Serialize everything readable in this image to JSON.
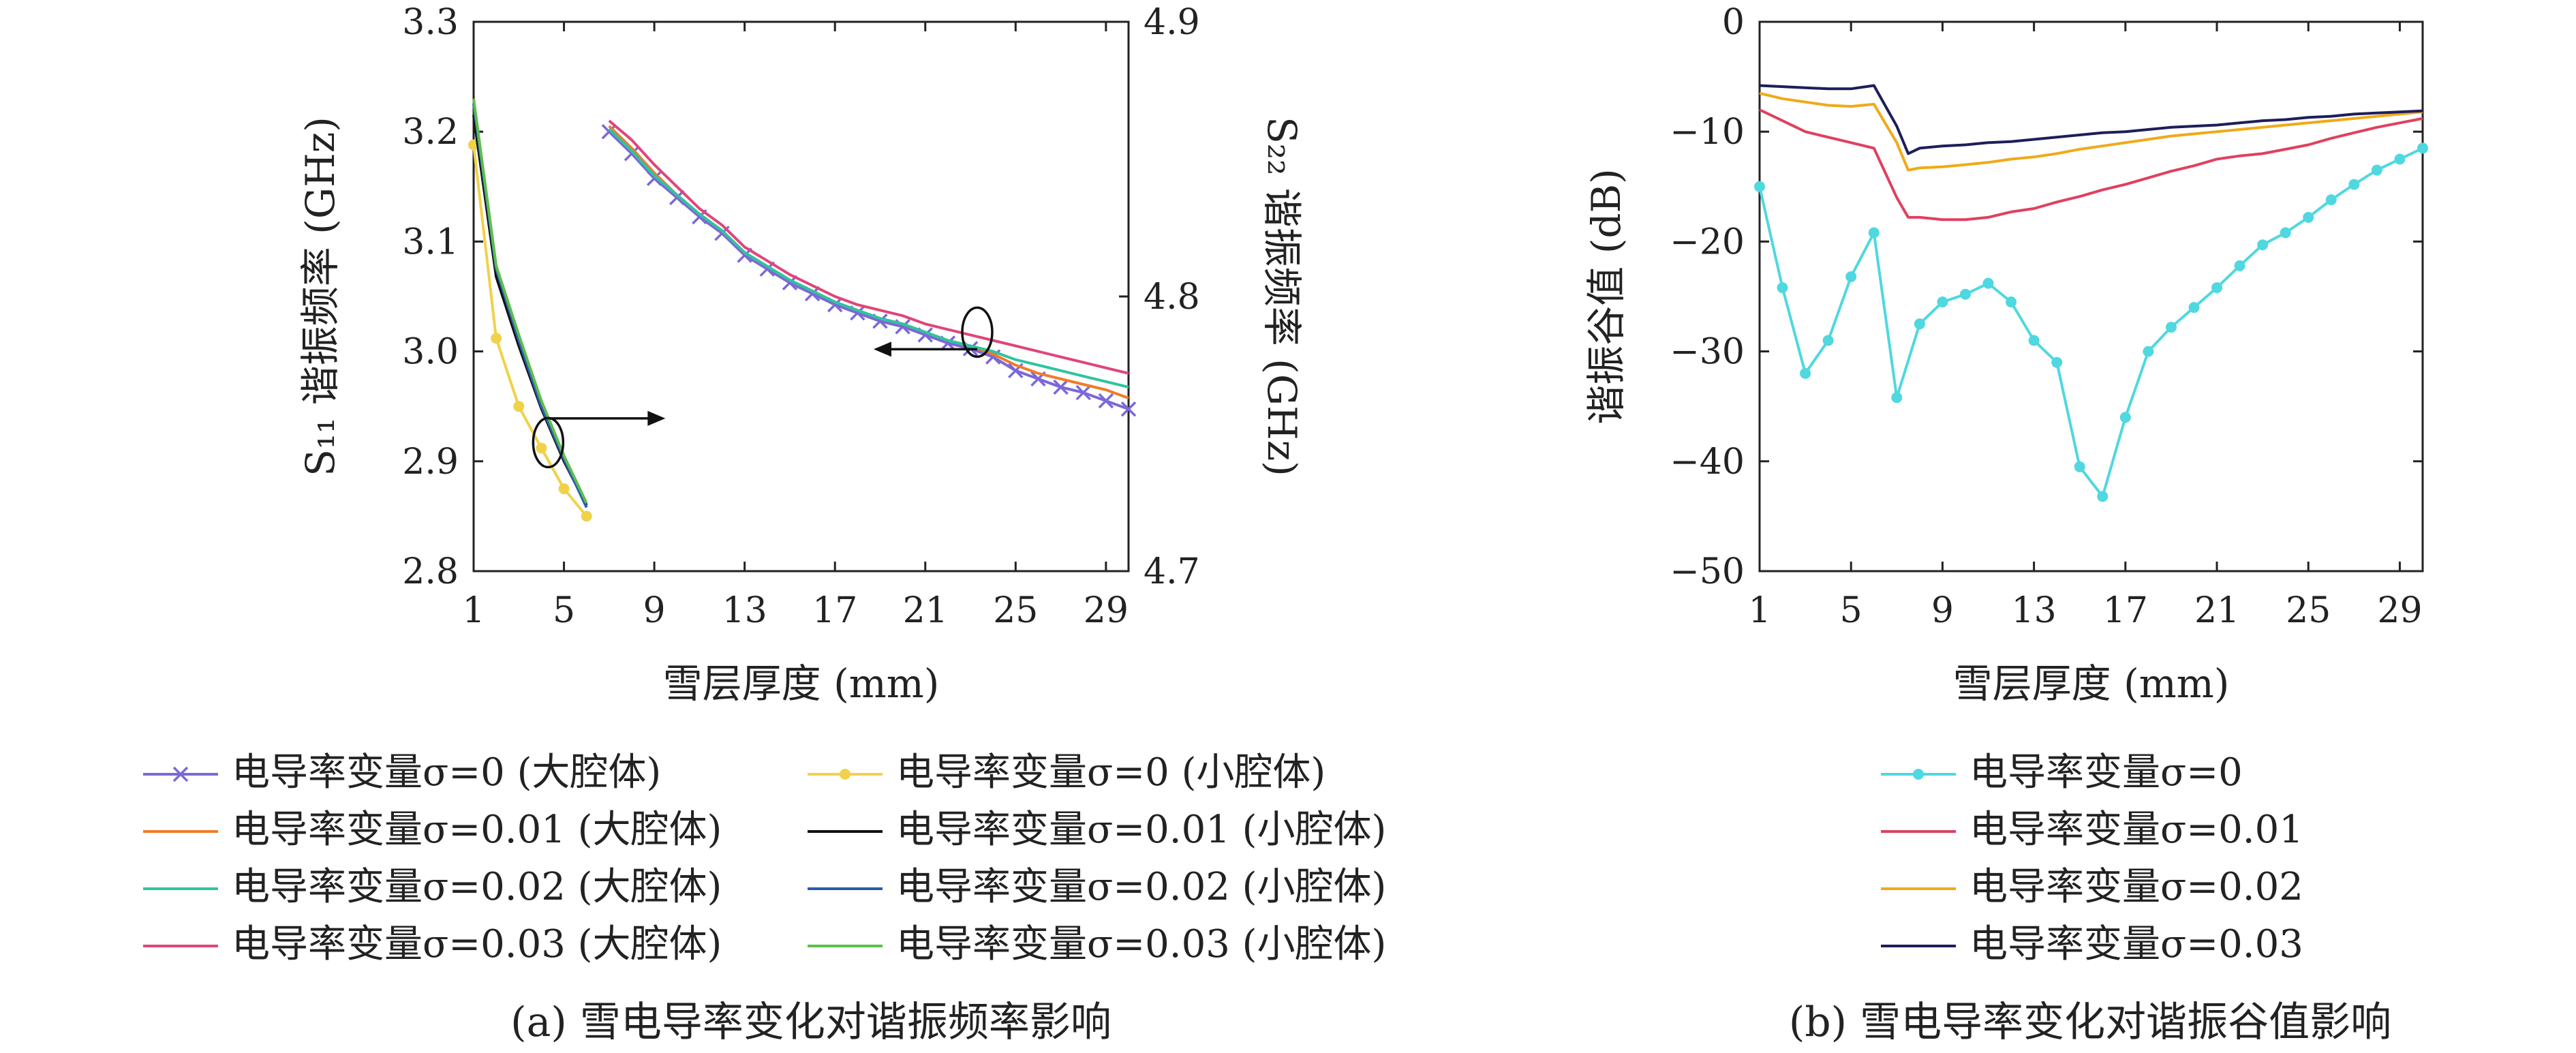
{
  "chart_data": [
    {
      "id": "a",
      "type": "line",
      "caption": "(a) 雪电导率变化对谐振频率影响",
      "xlabel": "雪层厚度 (mm)",
      "ylabel": "S₁₁ 谐振频率 (GHz)",
      "y2label": "S₂₂ 谐振频率 (GHz)",
      "xlim": [
        1,
        30
      ],
      "xticks": [
        "1",
        "5",
        "9",
        "13",
        "17",
        "21",
        "25",
        "29"
      ],
      "ylim": [
        2.8,
        3.3
      ],
      "yticks": [
        "2.8",
        "2.9",
        "3.0",
        "3.1",
        "3.2",
        "3.3"
      ],
      "y2lim": [
        4.7,
        4.9
      ],
      "y2ticks": [
        "4.7",
        "4.8",
        "4.9"
      ],
      "grid": false,
      "legend_placement": "below",
      "series": [
        {
          "name": "电导率变量σ=0 (大腔体)",
          "axis": "right",
          "color": "#7b68d9",
          "marker": "x",
          "x": [
            7,
            8,
            9,
            10,
            11,
            12,
            13,
            14,
            15,
            16,
            17,
            18,
            19,
            20,
            21,
            22,
            23,
            24,
            25,
            26,
            27,
            28,
            29,
            30
          ],
          "y": [
            4.86,
            4.852,
            4.843,
            4.836,
            4.829,
            4.823,
            4.815,
            4.81,
            4.805,
            4.801,
            4.797,
            4.794,
            4.791,
            4.789,
            4.786,
            4.783,
            4.781,
            4.778,
            4.773,
            4.77,
            4.767,
            4.765,
            4.762,
            4.759
          ]
        },
        {
          "name": "电导率变量σ=0.01 (大腔体)",
          "axis": "right",
          "color": "#f07c28",
          "marker": "none",
          "x": [
            7,
            8,
            9,
            10,
            11,
            12,
            13,
            14,
            15,
            16,
            17,
            18,
            19,
            20,
            21,
            22,
            23,
            24,
            25,
            26,
            27,
            28,
            29,
            30
          ],
          "y": [
            4.862,
            4.854,
            4.845,
            4.837,
            4.83,
            4.824,
            4.816,
            4.811,
            4.806,
            4.802,
            4.798,
            4.795,
            4.792,
            4.79,
            4.787,
            4.784,
            4.782,
            4.779,
            4.775,
            4.772,
            4.77,
            4.768,
            4.766,
            4.763
          ]
        },
        {
          "name": "电导率变量σ=0.02 (大腔体)",
          "axis": "right",
          "color": "#2ec4a0",
          "marker": "none",
          "x": [
            7,
            8,
            9,
            10,
            11,
            12,
            13,
            14,
            15,
            16,
            17,
            18,
            19,
            20,
            21,
            22,
            23,
            24,
            25,
            26,
            27,
            28,
            29,
            30
          ],
          "y": [
            4.861,
            4.853,
            4.844,
            4.837,
            4.83,
            4.824,
            4.816,
            4.811,
            4.806,
            4.802,
            4.798,
            4.795,
            4.792,
            4.79,
            4.787,
            4.784,
            4.782,
            4.78,
            4.777,
            4.775,
            4.773,
            4.771,
            4.769,
            4.767
          ]
        },
        {
          "name": "电导率变量σ=0.03 (大腔体)",
          "axis": "right",
          "color": "#e0457a",
          "marker": "none",
          "x": [
            7,
            8,
            9,
            10,
            11,
            12,
            13,
            14,
            15,
            16,
            17,
            18,
            19,
            20,
            21,
            22,
            23,
            24,
            25,
            26,
            27,
            28,
            29,
            30
          ],
          "y": [
            4.864,
            4.857,
            4.848,
            4.84,
            4.832,
            4.826,
            4.818,
            4.813,
            4.808,
            4.804,
            4.8,
            4.797,
            4.795,
            4.793,
            4.79,
            4.788,
            4.786,
            4.784,
            4.782,
            4.78,
            4.778,
            4.776,
            4.774,
            4.772
          ]
        },
        {
          "name": "电导率变量σ=0 (小腔体)",
          "axis": "left",
          "color": "#f0d24a",
          "marker": "dot",
          "x": [
            1,
            2,
            3,
            4,
            5,
            6
          ],
          "y": [
            3.188,
            3.012,
            2.95,
            2.912,
            2.875,
            2.85
          ]
        },
        {
          "name": "电导率变量σ=0.01 (小腔体)",
          "axis": "left",
          "color": "#111111",
          "marker": "none",
          "x": [
            1,
            2,
            3,
            4,
            5,
            6
          ],
          "y": [
            3.215,
            3.068,
            3.005,
            2.948,
            2.9,
            2.86
          ]
        },
        {
          "name": "电导率变量σ=0.02 (小腔体)",
          "axis": "left",
          "color": "#2a5bb5",
          "marker": "none",
          "x": [
            1,
            2,
            3,
            4,
            5,
            6
          ],
          "y": [
            3.225,
            3.075,
            3.01,
            2.95,
            2.902,
            2.858
          ]
        },
        {
          "name": "电导率变量σ=0.03 (小腔体)",
          "axis": "left",
          "color": "#5bbf4a",
          "marker": "none",
          "x": [
            1,
            2,
            3,
            4,
            5,
            6
          ],
          "y": [
            3.23,
            3.078,
            3.015,
            2.955,
            2.905,
            2.862
          ]
        }
      ]
    },
    {
      "id": "b",
      "type": "line",
      "caption": "(b) 雪电导率变化对谐振谷值影响",
      "xlabel": "雪层厚度 (mm)",
      "ylabel": "谐振谷值 (dB)",
      "xlim": [
        1,
        30
      ],
      "xticks": [
        "1",
        "5",
        "9",
        "13",
        "17",
        "21",
        "25",
        "29"
      ],
      "ylim": [
        -50,
        0
      ],
      "yticks": [
        "0",
        "−10",
        "−20",
        "−30",
        "−40",
        "−50"
      ],
      "grid": false,
      "legend_placement": "below",
      "series": [
        {
          "name": "电导率变量σ=0",
          "color": "#4fd8e0",
          "marker": "dot",
          "x": [
            1,
            2,
            3,
            4,
            5,
            6,
            7,
            8,
            9,
            10,
            11,
            12,
            13,
            14,
            15,
            16,
            17,
            18,
            19,
            20,
            21,
            22,
            23,
            24,
            25,
            26,
            27,
            28,
            29,
            30
          ],
          "y": [
            -15,
            -24.2,
            -32,
            -29,
            -23.2,
            -19.2,
            -34.2,
            -27.5,
            -25.5,
            -24.8,
            -23.8,
            -25.5,
            -29,
            -31,
            -40.5,
            -43.2,
            -36,
            -30,
            -27.8,
            -26,
            -24.2,
            -22.2,
            -20.3,
            -19.2,
            -17.8,
            -16.2,
            -14.8,
            -13.5,
            -12.5,
            -11.5
          ]
        },
        {
          "name": "电导率变量σ=0.01",
          "color": "#e0405f",
          "marker": "none",
          "x": [
            1,
            2,
            3,
            4,
            5,
            6,
            7,
            7.5,
            8,
            9,
            10,
            11,
            12,
            13,
            14,
            15,
            16,
            17,
            18,
            19,
            20,
            21,
            22,
            23,
            24,
            25,
            26,
            27,
            28,
            29,
            30
          ],
          "y": [
            -8,
            -9,
            -10,
            -10.5,
            -11,
            -11.5,
            -16,
            -17.8,
            -17.8,
            -18,
            -18,
            -17.8,
            -17.3,
            -17,
            -16.4,
            -15.9,
            -15.3,
            -14.8,
            -14.2,
            -13.6,
            -13.1,
            -12.5,
            -12.2,
            -12.0,
            -11.6,
            -11.2,
            -10.6,
            -10.1,
            -9.6,
            -9.2,
            -8.8
          ]
        },
        {
          "name": "电导率变量σ=0.02",
          "color": "#f0aa18",
          "marker": "none",
          "x": [
            1,
            2,
            3,
            4,
            5,
            6,
            7,
            7.5,
            8,
            9,
            10,
            11,
            12,
            13,
            14,
            15,
            16,
            17,
            18,
            19,
            20,
            21,
            22,
            23,
            24,
            25,
            26,
            27,
            28,
            29,
            30
          ],
          "y": [
            -6.5,
            -7,
            -7.3,
            -7.6,
            -7.7,
            -7.5,
            -11,
            -13.5,
            -13.3,
            -13.2,
            -13,
            -12.8,
            -12.5,
            -12.3,
            -12,
            -11.6,
            -11.3,
            -11,
            -10.7,
            -10.4,
            -10.2,
            -10,
            -9.8,
            -9.6,
            -9.4,
            -9.2,
            -9.0,
            -8.8,
            -8.6,
            -8.4,
            -8.2
          ]
        },
        {
          "name": "电导率变量σ=0.03",
          "color": "#1e1e5a",
          "marker": "none",
          "x": [
            1,
            2,
            3,
            4,
            5,
            6,
            7,
            7.5,
            8,
            9,
            10,
            11,
            12,
            13,
            14,
            15,
            16,
            17,
            18,
            19,
            20,
            21,
            22,
            23,
            24,
            25,
            26,
            27,
            28,
            29,
            30
          ],
          "y": [
            -5.8,
            -5.9,
            -6,
            -6.1,
            -6.1,
            -5.8,
            -9.5,
            -12,
            -11.5,
            -11.3,
            -11.2,
            -11,
            -10.9,
            -10.7,
            -10.5,
            -10.3,
            -10.1,
            -10,
            -9.8,
            -9.6,
            -9.5,
            -9.4,
            -9.2,
            -9.0,
            -8.9,
            -8.7,
            -8.6,
            -8.4,
            -8.3,
            -8.2,
            -8.1
          ]
        }
      ]
    }
  ]
}
